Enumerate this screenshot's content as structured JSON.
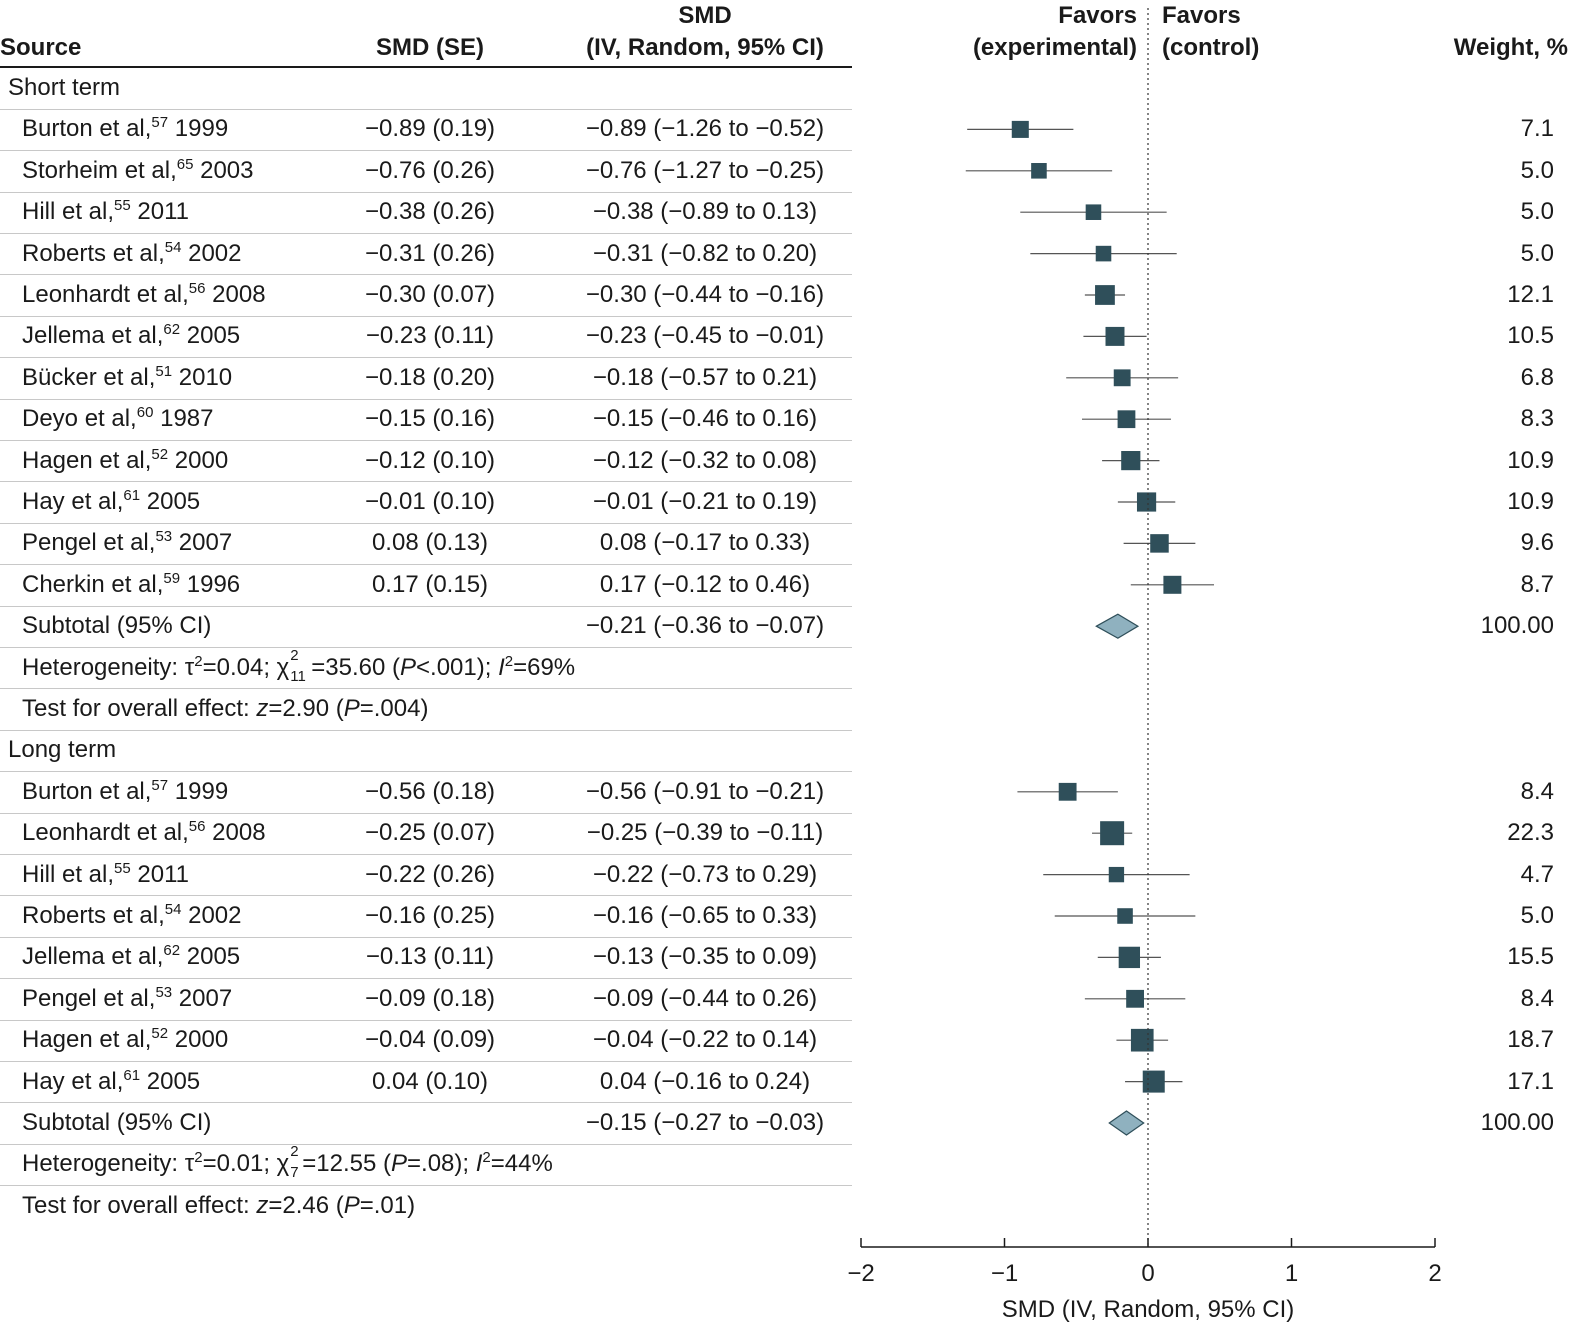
{
  "header": {
    "source": "Source",
    "smd_se": "SMD (SE)",
    "smd_ci_line1": "SMD",
    "smd_ci_line2": "(IV, Random, 95% CI)",
    "favors_exp_line1": "Favors",
    "favors_exp_line2": "(experimental)",
    "favors_ctrl_line1": "Favors",
    "favors_ctrl_line2": "(control)",
    "weight": "Weight, %"
  },
  "colors": {
    "marker": "#2f4f5a",
    "diamond_fill": "#8fb1bf",
    "diamond_stroke": "#2f4f5a",
    "ci_line": "#555555"
  },
  "chart_data": {
    "type": "forest",
    "xlabel": "SMD (IV, Random, 95% CI)",
    "xlim": [
      -2,
      2
    ],
    "xticks": [
      -2,
      -1,
      0,
      1,
      2
    ],
    "xtick_labels": [
      "−2",
      "−1",
      "0",
      "1",
      "2"
    ],
    "null_line": 0,
    "groups": [
      {
        "label": "Short term",
        "studies": [
          {
            "author": "Burton et al,",
            "ref": "57",
            "year": "1999",
            "smd_se": "−0.89 (0.19)",
            "ci_text": "−0.89 (−1.26 to −0.52)",
            "smd": -0.89,
            "lo": -1.26,
            "hi": -0.52,
            "weight_text": "7.1",
            "weight": 7.1
          },
          {
            "author": "Storheim et al,",
            "ref": "65",
            "year": "2003",
            "smd_se": "−0.76 (0.26)",
            "ci_text": "−0.76 (−1.27 to −0.25)",
            "smd": -0.76,
            "lo": -1.27,
            "hi": -0.25,
            "weight_text": "5.0",
            "weight": 5.0
          },
          {
            "author": "Hill et al,",
            "ref": "55",
            "year": "2011",
            "smd_se": "−0.38 (0.26)",
            "ci_text": "−0.38 (−0.89 to 0.13)",
            "smd": -0.38,
            "lo": -0.89,
            "hi": 0.13,
            "weight_text": "5.0",
            "weight": 5.0
          },
          {
            "author": "Roberts et al,",
            "ref": "54",
            "year": "2002",
            "smd_se": "−0.31 (0.26)",
            "ci_text": "−0.31 (−0.82 to 0.20)",
            "smd": -0.31,
            "lo": -0.82,
            "hi": 0.2,
            "weight_text": "5.0",
            "weight": 5.0
          },
          {
            "author": "Leonhardt et al,",
            "ref": "56",
            "year": "2008",
            "smd_se": "−0.30 (0.07)",
            "ci_text": "−0.30 (−0.44 to −0.16)",
            "smd": -0.3,
            "lo": -0.44,
            "hi": -0.16,
            "weight_text": "12.1",
            "weight": 12.1
          },
          {
            "author": "Jellema et al,",
            "ref": "62",
            "year": "2005",
            "smd_se": "−0.23 (0.11)",
            "ci_text": "−0.23 (−0.45 to −0.01)",
            "smd": -0.23,
            "lo": -0.45,
            "hi": -0.01,
            "weight_text": "10.5",
            "weight": 10.5
          },
          {
            "author": "Bücker et al,",
            "ref": "51",
            "year": "2010",
            "smd_se": "−0.18 (0.20)",
            "ci_text": "−0.18 (−0.57 to 0.21)",
            "smd": -0.18,
            "lo": -0.57,
            "hi": 0.21,
            "weight_text": "6.8",
            "weight": 6.8
          },
          {
            "author": "Deyo et al,",
            "ref": "60",
            "year": "1987",
            "smd_se": "−0.15 (0.16)",
            "ci_text": "−0.15 (−0.46 to 0.16)",
            "smd": -0.15,
            "lo": -0.46,
            "hi": 0.16,
            "weight_text": "8.3",
            "weight": 8.3
          },
          {
            "author": "Hagen et al,",
            "ref": "52",
            "year": "2000",
            "smd_se": "−0.12 (0.10)",
            "ci_text": "−0.12 (−0.32 to 0.08)",
            "smd": -0.12,
            "lo": -0.32,
            "hi": 0.08,
            "weight_text": "10.9",
            "weight": 10.9
          },
          {
            "author": "Hay et al,",
            "ref": "61",
            "year": "2005",
            "smd_se": "−0.01 (0.10)",
            "ci_text": "−0.01 (−0.21 to 0.19)",
            "smd": -0.01,
            "lo": -0.21,
            "hi": 0.19,
            "weight_text": "10.9",
            "weight": 10.9
          },
          {
            "author": "Pengel et al,",
            "ref": "53",
            "year": "2007",
            "smd_se": "0.08 (0.13)",
            "ci_text": "0.08 (−0.17 to 0.33)",
            "smd": 0.08,
            "lo": -0.17,
            "hi": 0.33,
            "weight_text": "9.6",
            "weight": 9.6
          },
          {
            "author": "Cherkin et al,",
            "ref": "59",
            "year": "1996",
            "smd_se": "0.17 (0.15)",
            "ci_text": "0.17 (−0.12 to 0.46)",
            "smd": 0.17,
            "lo": -0.12,
            "hi": 0.46,
            "weight_text": "8.7",
            "weight": 8.7
          }
        ],
        "subtotal": {
          "label": "Subtotal (95% CI)",
          "ci_text": "−0.21 (−0.36 to −0.07)",
          "smd": -0.21,
          "lo": -0.36,
          "hi": -0.07,
          "weight_text": "100.00"
        },
        "heterogeneity": {
          "prefix": "Heterogeneity: τ",
          "tau2": "=0.04; χ",
          "chi_sub": "11",
          "chi_val": "=35.60 (",
          "p_label": "P",
          "p_val": "<.001); ",
          "i_label": "I",
          "i_val": "=69%"
        },
        "overall": {
          "prefix": "Test for overall effect: ",
          "z_label": "z",
          "z_val": "=2.90 (",
          "p_label": "P",
          "p_val": "=.004)"
        }
      },
      {
        "label": "Long term",
        "studies": [
          {
            "author": "Burton et al,",
            "ref": "57",
            "year": "1999",
            "smd_se": "−0.56 (0.18)",
            "ci_text": "−0.56 (−0.91 to −0.21)",
            "smd": -0.56,
            "lo": -0.91,
            "hi": -0.21,
            "weight_text": "8.4",
            "weight": 8.4
          },
          {
            "author": "Leonhardt et al,",
            "ref": "56",
            "year": "2008",
            "smd_se": "−0.25 (0.07)",
            "ci_text": "−0.25 (−0.39 to −0.11)",
            "smd": -0.25,
            "lo": -0.39,
            "hi": -0.11,
            "weight_text": "22.3",
            "weight": 22.3
          },
          {
            "author": "Hill et al,",
            "ref": "55",
            "year": "2011",
            "smd_se": "−0.22 (0.26)",
            "ci_text": "−0.22 (−0.73 to 0.29)",
            "smd": -0.22,
            "lo": -0.73,
            "hi": 0.29,
            "weight_text": "4.7",
            "weight": 4.7
          },
          {
            "author": "Roberts et al,",
            "ref": "54",
            "year": "2002",
            "smd_se": "−0.16 (0.25)",
            "ci_text": "−0.16 (−0.65 to 0.33)",
            "smd": -0.16,
            "lo": -0.65,
            "hi": 0.33,
            "weight_text": "5.0",
            "weight": 5.0
          },
          {
            "author": "Jellema et al,",
            "ref": "62",
            "year": "2005",
            "smd_se": "−0.13 (0.11)",
            "ci_text": "−0.13 (−0.35 to 0.09)",
            "smd": -0.13,
            "lo": -0.35,
            "hi": 0.09,
            "weight_text": "15.5",
            "weight": 15.5
          },
          {
            "author": "Pengel et al,",
            "ref": "53",
            "year": "2007",
            "smd_se": "−0.09 (0.18)",
            "ci_text": "−0.09 (−0.44 to 0.26)",
            "smd": -0.09,
            "lo": -0.44,
            "hi": 0.26,
            "weight_text": "8.4",
            "weight": 8.4
          },
          {
            "author": "Hagen et al,",
            "ref": "52",
            "year": "2000",
            "smd_se": "−0.04 (0.09)",
            "ci_text": "−0.04 (−0.22 to 0.14)",
            "smd": -0.04,
            "lo": -0.22,
            "hi": 0.14,
            "weight_text": "18.7",
            "weight": 18.7
          },
          {
            "author": "Hay et al,",
            "ref": "61",
            "year": "2005",
            "smd_se": "0.04 (0.10)",
            "ci_text": "0.04 (−0.16 to 0.24)",
            "smd": 0.04,
            "lo": -0.16,
            "hi": 0.24,
            "weight_text": "17.1",
            "weight": 17.1
          }
        ],
        "subtotal": {
          "label": "Subtotal (95% CI)",
          "ci_text": "−0.15 (−0.27 to −0.03)",
          "smd": -0.15,
          "lo": -0.27,
          "hi": -0.03,
          "weight_text": "100.00"
        },
        "heterogeneity": {
          "prefix": "Heterogeneity: τ",
          "tau2": "=0.01; χ",
          "chi_sub": "7",
          "chi_val": "=12.55 (",
          "p_label": "P",
          "p_val": "=.08); ",
          "i_label": "I",
          "i_val": "=44%"
        },
        "overall": {
          "prefix": "Test for overall effect: ",
          "z_label": "z",
          "z_val": "=2.46 (",
          "p_label": "P",
          "p_val": "=.01)"
        }
      }
    ]
  }
}
